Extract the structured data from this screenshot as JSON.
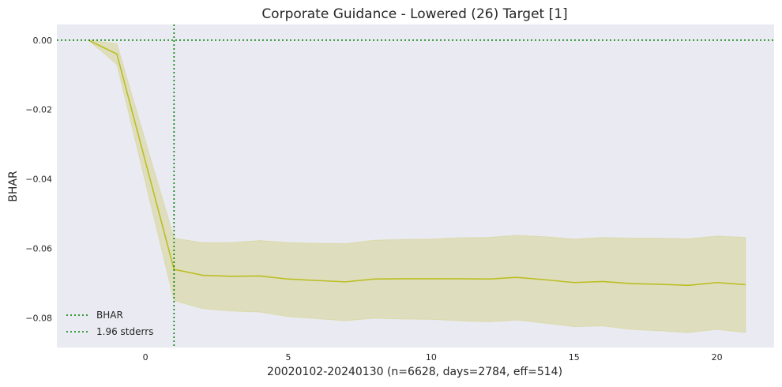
{
  "chart_data": {
    "type": "line",
    "title": "Corporate Guidance - Lowered (26) Target [1]",
    "xlabel": "20020102-20240130 (n=6628, days=2784, eff=514)",
    "ylabel": "BHAR",
    "xlim": [
      -3.1,
      22.0
    ],
    "ylim": [
      -0.0885,
      0.0045
    ],
    "xticks": [
      0,
      5,
      10,
      15,
      20
    ],
    "yticks": [
      0.0,
      -0.02,
      -0.04,
      -0.06,
      -0.08
    ],
    "ytick_labels": [
      "0.00",
      "−0.02",
      "−0.04",
      "−0.06",
      "−0.08"
    ],
    "grid": false,
    "legend_position": "lower-left",
    "colors": {
      "plot_background": "#eaeaf2",
      "series_line": "#bcbd22",
      "band_fill": "#bcbd22",
      "reference_line": "#008000"
    },
    "series": [
      {
        "x": [
          -2,
          -1,
          0,
          1,
          2,
          3,
          4,
          5,
          6,
          7,
          8,
          9,
          10,
          11,
          12,
          13,
          14,
          15,
          16,
          17,
          18,
          19,
          20,
          21
        ],
        "y": [
          0.0,
          -0.004,
          -0.035,
          -0.066,
          -0.0677,
          -0.068,
          -0.0679,
          -0.0688,
          -0.0692,
          -0.0696,
          -0.0688,
          -0.0687,
          -0.0687,
          -0.0687,
          -0.0688,
          -0.0683,
          -0.069,
          -0.0698,
          -0.0695,
          -0.0701,
          -0.0703,
          -0.0706,
          -0.0698,
          -0.0704
        ],
        "lower": [
          0.0,
          -0.007,
          -0.041,
          -0.075,
          -0.0773,
          -0.078,
          -0.0783,
          -0.0796,
          -0.0802,
          -0.0808,
          -0.0801,
          -0.0803,
          -0.0804,
          -0.0808,
          -0.0811,
          -0.0806,
          -0.0815,
          -0.0825,
          -0.0823,
          -0.0833,
          -0.0837,
          -0.0842,
          -0.0833,
          -0.0842
        ]
      }
    ],
    "upper_band": [
      0.0,
      -0.001,
      -0.029,
      -0.057,
      -0.0583,
      -0.0583,
      -0.0577,
      -0.0583,
      -0.0585,
      -0.0586,
      -0.0576,
      -0.0574,
      -0.0573,
      -0.0569,
      -0.0568,
      -0.0562,
      -0.0566,
      -0.0573,
      -0.0568,
      -0.057,
      -0.057,
      -0.0572,
      -0.0564,
      -0.0568
    ],
    "reference_lines": {
      "horizontal_y": 0.0,
      "vertical_x": 1
    },
    "legend": [
      "BHAR",
      "1.96 stderrs"
    ]
  }
}
